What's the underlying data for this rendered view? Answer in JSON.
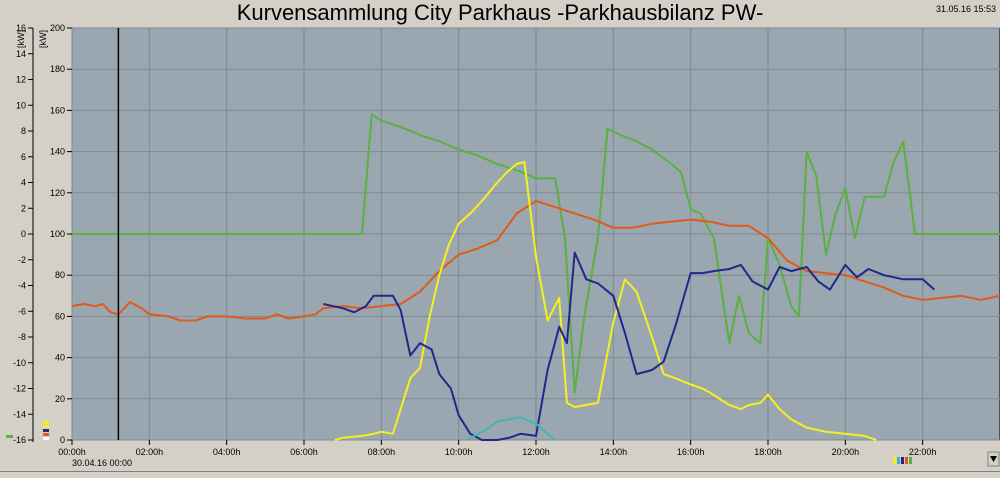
{
  "title": "Kurvensammlung City Parkhaus -Parkhausbilanz PW-",
  "timestamp": "31.05.16 15:53",
  "chart_data": {
    "type": "line",
    "title": "Kurvensammlung City Parkhaus -Parkhausbilanz PW-",
    "left_axis_unit": "[kW]",
    "right_axis_unit": "[kW]",
    "left_axis_ticks": [
      "16",
      "14",
      "12",
      "10",
      "8",
      "6",
      "4",
      "2",
      "0",
      "-2",
      "-4",
      "-6",
      "-8",
      "-10",
      "-12",
      "-14",
      "-16"
    ],
    "left_axis_range": [
      -16,
      16
    ],
    "right_axis_ticks": [
      "200",
      "180",
      "160",
      "140",
      "120",
      "100",
      "80",
      "60",
      "40",
      "20",
      "0"
    ],
    "right_axis_range": [
      0,
      200
    ],
    "x_tick_labels": [
      "00:00h",
      "02:00h",
      "04:00h",
      "06:00h",
      "08:00h",
      "10:00h",
      "12:00h",
      "14:00h",
      "16:00h",
      "18:00h",
      "20:00h",
      "22:00h"
    ],
    "x_range_hours": [
      0,
      24
    ],
    "start_date_label": "30.04.16 00:00",
    "cursor_hour": 1.2,
    "grid": true,
    "series": [
      {
        "color": "#5cb040",
        "axis": "right",
        "points": [
          [
            0,
            100
          ],
          [
            7.5,
            100
          ],
          [
            7.75,
            158
          ],
          [
            8,
            155
          ],
          [
            8.5,
            152
          ],
          [
            9,
            148
          ],
          [
            9.5,
            145
          ],
          [
            10,
            141
          ],
          [
            10.5,
            138
          ],
          [
            11,
            134
          ],
          [
            11.5,
            131
          ],
          [
            12,
            127
          ],
          [
            12.5,
            127
          ],
          [
            12.75,
            98
          ],
          [
            13,
            23
          ],
          [
            13.25,
            60
          ],
          [
            13.6,
            98
          ],
          [
            13.85,
            151
          ],
          [
            14.2,
            148
          ],
          [
            14.6,
            145
          ],
          [
            15,
            141
          ],
          [
            15.5,
            134
          ],
          [
            15.75,
            130
          ],
          [
            16,
            112
          ],
          [
            16.25,
            110
          ],
          [
            16.6,
            98
          ],
          [
            17,
            47
          ],
          [
            17.25,
            70
          ],
          [
            17.5,
            52
          ],
          [
            17.8,
            47
          ],
          [
            18,
            98
          ],
          [
            18.3,
            85
          ],
          [
            18.6,
            65
          ],
          [
            18.8,
            60
          ],
          [
            19,
            140
          ],
          [
            19.25,
            128
          ],
          [
            19.5,
            90
          ],
          [
            19.75,
            110
          ],
          [
            20,
            122
          ],
          [
            20.25,
            98
          ],
          [
            20.5,
            118
          ],
          [
            21,
            118
          ],
          [
            21.25,
            135
          ],
          [
            21.5,
            145
          ],
          [
            21.8,
            100
          ],
          [
            24,
            100
          ]
        ]
      },
      {
        "color": "#e05a18",
        "axis": "right",
        "points": [
          [
            0,
            65
          ],
          [
            0.3,
            66
          ],
          [
            0.6,
            65
          ],
          [
            0.8,
            66
          ],
          [
            1,
            62
          ],
          [
            1.2,
            61
          ],
          [
            1.5,
            67
          ],
          [
            1.8,
            64
          ],
          [
            2,
            61
          ],
          [
            2.5,
            60
          ],
          [
            2.8,
            58
          ],
          [
            3.2,
            58
          ],
          [
            3.5,
            60
          ],
          [
            4,
            60
          ],
          [
            4.5,
            59
          ],
          [
            5,
            59
          ],
          [
            5.3,
            61
          ],
          [
            5.6,
            59
          ],
          [
            6,
            60
          ],
          [
            6.3,
            61
          ],
          [
            6.5,
            64
          ],
          [
            7,
            65
          ],
          [
            7.5,
            64
          ],
          [
            8,
            65
          ],
          [
            8.5,
            66
          ],
          [
            9,
            72
          ],
          [
            9.5,
            82
          ],
          [
            10,
            90
          ],
          [
            10.5,
            93
          ],
          [
            11,
            97
          ],
          [
            11.5,
            110
          ],
          [
            12,
            116
          ],
          [
            12.5,
            113
          ],
          [
            13,
            110
          ],
          [
            13.5,
            107
          ],
          [
            14,
            103
          ],
          [
            14.5,
            103
          ],
          [
            15,
            105
          ],
          [
            15.5,
            106
          ],
          [
            16,
            107
          ],
          [
            16.5,
            106
          ],
          [
            17,
            104
          ],
          [
            17.5,
            104
          ],
          [
            18,
            98
          ],
          [
            18.5,
            87
          ],
          [
            19,
            82
          ],
          [
            19.5,
            81
          ],
          [
            20,
            80
          ],
          [
            20.5,
            77
          ],
          [
            21,
            74
          ],
          [
            21.5,
            70
          ],
          [
            22,
            68
          ],
          [
            22.5,
            69
          ],
          [
            23,
            70
          ],
          [
            23.5,
            68
          ],
          [
            24,
            70
          ]
        ]
      },
      {
        "color": "#f5f01e",
        "axis": "right",
        "points": [
          [
            6.8,
            0
          ],
          [
            7,
            1
          ],
          [
            7.5,
            2
          ],
          [
            7.8,
            3
          ],
          [
            8,
            4
          ],
          [
            8.3,
            3
          ],
          [
            8.5,
            15
          ],
          [
            8.75,
            30
          ],
          [
            9,
            35
          ],
          [
            9.25,
            60
          ],
          [
            9.5,
            80
          ],
          [
            9.75,
            95
          ],
          [
            10,
            105
          ],
          [
            10.3,
            110
          ],
          [
            10.6,
            116
          ],
          [
            11,
            125
          ],
          [
            11.25,
            130
          ],
          [
            11.5,
            134
          ],
          [
            11.7,
            135
          ],
          [
            12,
            89
          ],
          [
            12.3,
            58
          ],
          [
            12.6,
            69
          ],
          [
            12.8,
            18
          ],
          [
            13,
            16
          ],
          [
            13.3,
            17
          ],
          [
            13.6,
            18
          ],
          [
            14,
            57
          ],
          [
            14.3,
            78
          ],
          [
            14.6,
            72
          ],
          [
            15,
            50
          ],
          [
            15.3,
            32
          ],
          [
            15.6,
            30
          ],
          [
            16,
            27
          ],
          [
            16.3,
            25
          ],
          [
            16.5,
            23
          ],
          [
            17,
            17
          ],
          [
            17.3,
            15
          ],
          [
            17.5,
            17
          ],
          [
            17.8,
            18
          ],
          [
            18,
            22
          ],
          [
            18.3,
            15
          ],
          [
            18.6,
            10
          ],
          [
            19,
            6
          ],
          [
            19.5,
            4
          ],
          [
            20,
            3
          ],
          [
            20.5,
            2
          ],
          [
            20.8,
            0
          ]
        ]
      },
      {
        "color": "#20288c",
        "axis": "right",
        "points": [
          [
            6.5,
            66
          ],
          [
            7,
            64
          ],
          [
            7.3,
            62
          ],
          [
            7.6,
            65
          ],
          [
            7.8,
            70
          ],
          [
            8,
            70
          ],
          [
            8.3,
            70
          ],
          [
            8.5,
            63
          ],
          [
            8.75,
            41
          ],
          [
            9,
            47
          ],
          [
            9.3,
            44
          ],
          [
            9.5,
            32
          ],
          [
            9.8,
            25
          ],
          [
            10,
            12
          ],
          [
            10.3,
            3
          ],
          [
            10.6,
            0
          ],
          [
            11,
            0
          ],
          [
            11.3,
            1
          ],
          [
            11.6,
            3
          ],
          [
            12,
            2
          ],
          [
            12.3,
            34
          ],
          [
            12.6,
            55
          ],
          [
            12.8,
            47
          ],
          [
            13,
            91
          ],
          [
            13.3,
            78
          ],
          [
            13.6,
            76
          ],
          [
            14,
            70
          ],
          [
            14.3,
            52
          ],
          [
            14.6,
            32
          ],
          [
            15,
            34
          ],
          [
            15.3,
            38
          ],
          [
            15.6,
            55
          ],
          [
            16,
            81
          ],
          [
            16.3,
            81
          ],
          [
            16.6,
            82
          ],
          [
            17,
            83
          ],
          [
            17.3,
            85
          ],
          [
            17.6,
            77
          ],
          [
            18,
            73
          ],
          [
            18.3,
            84
          ],
          [
            18.6,
            82
          ],
          [
            19,
            84
          ],
          [
            19.3,
            77
          ],
          [
            19.6,
            73
          ],
          [
            20,
            85
          ],
          [
            20.3,
            79
          ],
          [
            20.6,
            83
          ],
          [
            21,
            80
          ],
          [
            21.5,
            78
          ],
          [
            22,
            78
          ],
          [
            22.3,
            73
          ]
        ]
      },
      {
        "color": "#40b8b0",
        "axis": "right",
        "points": [
          [
            10.2,
            0
          ],
          [
            10.5,
            3
          ],
          [
            10.8,
            6
          ],
          [
            11,
            9
          ],
          [
            11.3,
            10
          ],
          [
            11.6,
            11
          ],
          [
            12,
            8
          ],
          [
            12.3,
            3
          ],
          [
            12.5,
            0
          ]
        ]
      }
    ],
    "legend_colors": [
      "#f5f01e",
      "#40b8b0",
      "#20288c",
      "#e05a18",
      "#5cb040"
    ]
  }
}
